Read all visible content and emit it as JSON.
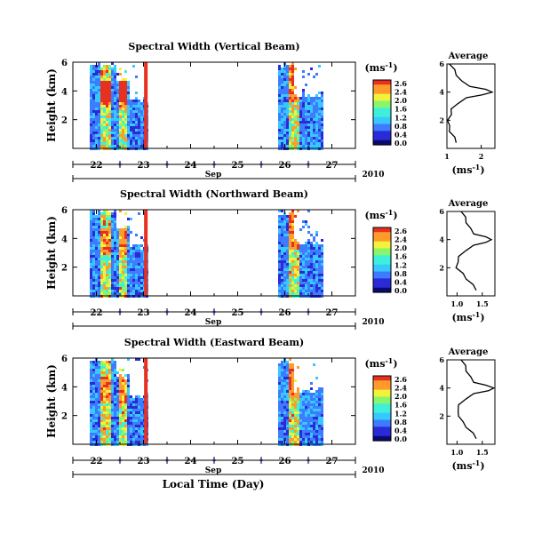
{
  "colorbar": {
    "unit_label": "(ms",
    "unit_exp": "-1",
    "unit_close": ")",
    "tick_labels": [
      "2.6",
      "2.4",
      "2.0",
      "1.6",
      "1.2",
      "0.8",
      "0.4",
      "0.0"
    ],
    "colors": [
      "#0a0a6e",
      "#2a2ad6",
      "#3d7bff",
      "#37c8ff",
      "#3ef0d9",
      "#8af56b",
      "#f3f23b",
      "#ff9b2a",
      "#e8301e"
    ]
  },
  "day_labels": [
    "22",
    "23",
    "24",
    "25",
    "26",
    "27"
  ],
  "month_label": "Sep",
  "year_label": "2010",
  "y_tick_labels": [
    "6",
    "4",
    "2"
  ],
  "y_axis_label": "Height (km)",
  "x_axis_label": "Local Time (Day)",
  "avg_ylabel": "(ms",
  "avg_ylabel_exp": "-1",
  "avg_ylabel_close": ")",
  "panels": [
    {
      "title": "Spectral Width (Vertical Beam)",
      "avg_title": "Average",
      "avg_x_ticks": [
        "1",
        "2"
      ],
      "avg_xlim": [
        1.0,
        2.4
      ]
    },
    {
      "title": "Spectral Width (Northward Beam)",
      "avg_title": "Average",
      "avg_x_ticks": [
        "1.0",
        "1.5"
      ],
      "avg_xlim": [
        0.8,
        1.75
      ]
    },
    {
      "title": "Spectral Width (Eastward Beam)",
      "avg_title": "Average",
      "avg_x_ticks": [
        "1.0",
        "1.5"
      ],
      "avg_xlim": [
        0.8,
        1.75
      ]
    }
  ],
  "chart_data": [
    {
      "type": "heatmap",
      "title": "Spectral Width (Vertical Beam)",
      "ylabel": "Height (km)",
      "xlabel": "",
      "xlim": [
        21.5,
        27.5
      ],
      "ylim": [
        0,
        6
      ],
      "x_tick_labels": [
        "22",
        "23",
        "24",
        "25",
        "26",
        "27"
      ],
      "y_tick_labels": [
        "6",
        "4",
        "2"
      ],
      "colorbar_range": [
        0.0,
        2.8
      ],
      "data_gap": [
        23.05,
        25.85
      ],
      "profile": {
        "height_km": [
          0.4,
          0.8,
          1.2,
          1.6,
          2.0,
          2.4,
          2.8,
          3.2,
          3.6,
          3.8,
          4.0,
          4.2,
          4.4,
          4.8,
          5.2,
          5.6,
          6.0
        ],
        "width": [
          1.3,
          1.2,
          1.1,
          1.05,
          1.05,
          1.1,
          1.15,
          1.3,
          1.6,
          2.0,
          2.35,
          2.1,
          1.7,
          1.4,
          1.3,
          1.2,
          1.1
        ]
      }
    },
    {
      "type": "heatmap",
      "title": "Spectral Width (Northward Beam)",
      "ylabel": "Height (km)",
      "xlabel": "",
      "xlim": [
        21.5,
        27.5
      ],
      "ylim": [
        0,
        6
      ],
      "x_tick_labels": [
        "22",
        "23",
        "24",
        "25",
        "26",
        "27"
      ],
      "y_tick_labels": [
        "6",
        "4",
        "2"
      ],
      "colorbar_range": [
        0.0,
        2.8
      ],
      "data_gap": [
        23.05,
        25.85
      ],
      "profile": {
        "height_km": [
          0.4,
          0.8,
          1.2,
          1.6,
          2.0,
          2.4,
          2.8,
          3.2,
          3.6,
          3.8,
          4.0,
          4.2,
          4.4,
          4.8,
          5.2,
          5.6,
          6.0
        ],
        "width": [
          1.4,
          1.3,
          1.2,
          1.1,
          1.0,
          1.0,
          1.05,
          1.15,
          1.35,
          1.55,
          1.7,
          1.55,
          1.35,
          1.25,
          1.2,
          1.15,
          1.1
        ]
      }
    },
    {
      "type": "heatmap",
      "title": "Spectral Width (Eastward Beam)",
      "ylabel": "Height (km)",
      "xlabel": "Local Time (Day)",
      "xlim": [
        21.5,
        27.5
      ],
      "ylim": [
        0,
        6
      ],
      "x_tick_labels": [
        "22",
        "23",
        "24",
        "25",
        "26",
        "27"
      ],
      "y_tick_labels": [
        "6",
        "4",
        "2"
      ],
      "colorbar_range": [
        0.0,
        2.8
      ],
      "data_gap": [
        23.05,
        25.85
      ],
      "profile": {
        "height_km": [
          0.4,
          0.8,
          1.2,
          1.6,
          2.0,
          2.4,
          2.8,
          3.2,
          3.6,
          3.8,
          4.0,
          4.2,
          4.4,
          4.8,
          5.2,
          5.6,
          6.0
        ],
        "width": [
          1.4,
          1.3,
          1.2,
          1.1,
          1.05,
          1.0,
          1.05,
          1.15,
          1.35,
          1.6,
          1.75,
          1.55,
          1.35,
          1.25,
          1.2,
          1.15,
          1.1
        ]
      }
    }
  ]
}
